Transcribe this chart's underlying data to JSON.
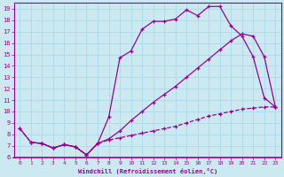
{
  "xlabel": "Windchill (Refroidissement éolien,°C)",
  "bg_color": "#cce8f0",
  "line_color": "#990099",
  "grid_color": "#aaddee",
  "xlim": [
    -0.5,
    23.5
  ],
  "ylim": [
    6,
    19.5
  ],
  "xticks": [
    0,
    1,
    2,
    3,
    4,
    5,
    6,
    7,
    8,
    9,
    10,
    11,
    12,
    13,
    14,
    15,
    16,
    17,
    18,
    19,
    20,
    21,
    22,
    23
  ],
  "yticks": [
    6,
    7,
    8,
    9,
    10,
    11,
    12,
    13,
    14,
    15,
    16,
    17,
    18,
    19
  ],
  "curve_upper_x": [
    0,
    1,
    2,
    3,
    4,
    5,
    6,
    7,
    8,
    9,
    10,
    11,
    12,
    13,
    14,
    15,
    16,
    17,
    18,
    19,
    20,
    21,
    22,
    23
  ],
  "curve_upper_y": [
    8.5,
    7.3,
    7.2,
    6.8,
    7.1,
    6.9,
    6.2,
    7.2,
    9.5,
    14.7,
    15.3,
    17.2,
    17.9,
    17.9,
    18.1,
    18.9,
    18.4,
    19.2,
    19.2,
    17.5,
    16.6,
    14.8,
    11.2,
    10.4
  ],
  "curve_mid_x": [
    1,
    2,
    3,
    4,
    5,
    6,
    7,
    8,
    9,
    10,
    11,
    12,
    13,
    14,
    15,
    16,
    17,
    18,
    19,
    20,
    21,
    22,
    23
  ],
  "curve_mid_y": [
    7.3,
    7.2,
    6.8,
    7.1,
    6.9,
    6.2,
    7.2,
    7.6,
    8.3,
    9.2,
    10.0,
    10.8,
    11.5,
    12.2,
    13.0,
    13.8,
    14.6,
    15.4,
    16.2,
    16.8,
    16.6,
    14.8,
    10.4
  ],
  "curve_low_x": [
    0,
    1,
    2,
    3,
    4,
    5,
    6,
    7,
    8,
    9,
    10,
    11,
    12,
    13,
    14,
    15,
    16,
    17,
    18,
    19,
    20,
    21,
    22,
    23
  ],
  "curve_low_y": [
    8.5,
    7.3,
    7.2,
    6.8,
    7.1,
    6.9,
    6.2,
    7.2,
    7.5,
    7.7,
    7.9,
    8.1,
    8.3,
    8.5,
    8.7,
    9.0,
    9.3,
    9.6,
    9.8,
    10.0,
    10.2,
    10.3,
    10.4,
    10.4
  ]
}
